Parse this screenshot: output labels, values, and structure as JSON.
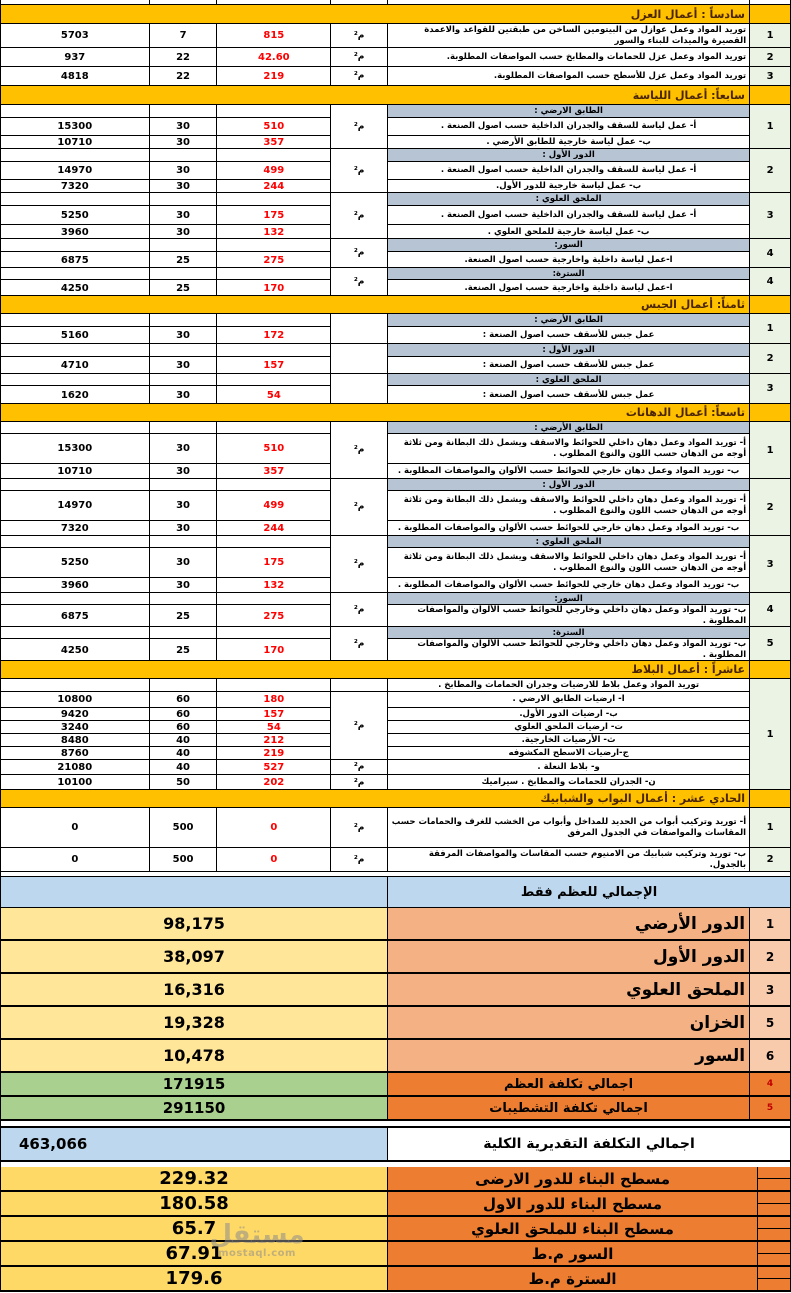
{
  "colors": {
    "section_header_bg": "#FFC000",
    "header_text": "#4a2500",
    "subrow_bg": "#B7C4D4",
    "number_col_bg": "#EAF3E4",
    "quantity_text": "#FF0000",
    "light_blue": "#BDD7EE",
    "summary_label_bg": "#F4B183",
    "summary_number_bg": "#F8CBAD",
    "summary_value_bg": "#FFE699",
    "deep_orange": "#ED7D31",
    "totals_value_bg": "#A9D08E",
    "area_value_bg": "#FFD966",
    "totals_number_text": "#C00000"
  },
  "sections": [
    {
      "kind": "items",
      "title": "سادساً : أعمال العزل",
      "rows": [
        {
          "no": "1",
          "desc": "توريد المواد وعمل عوازل من البيتومين الساخن من طبقتين للقواعد  والاعمدة القصيرة والميدات للبناء والسور",
          "unit": "م²",
          "qty": "815",
          "price": "7",
          "total": "5703"
        },
        {
          "no": "2",
          "desc": "توريد المواد وعمل عزل للحمامات والمطابخ حسب المواصفات المطلوبة.",
          "unit": "م²",
          "qty": "42.60",
          "price": "22",
          "total": "937"
        },
        {
          "no": "3",
          "desc": "توريد المواد وعمل عزل للأسطح حسب المواصفات المطلوبة.",
          "unit": "م²",
          "qty": "219",
          "price": "22",
          "total": "4818"
        }
      ]
    },
    {
      "kind": "groups",
      "title": "سابعاً: أعمال اللياسة",
      "groups": [
        {
          "no": "1",
          "sub": "الطابق الارضي :",
          "unit": "م²",
          "lines": [
            {
              "desc": "أ- عمل لياسة للسقف والجدران الداخلية حسب اصول الصنعة .",
              "qty": "510",
              "price": "30",
              "total": "15300"
            },
            {
              "desc": "ب- عمل لياسة خارجية للطابق الأرضي .",
              "qty": "357",
              "price": "30",
              "total": "10710"
            }
          ]
        },
        {
          "no": "2",
          "sub": "الدور الأول :",
          "unit": "م²",
          "lines": [
            {
              "desc": "أ- عمل لياسة للسقف والجدران الداخلية حسب اصول الصنعة .",
              "qty": "499",
              "price": "30",
              "total": "14970"
            },
            {
              "desc": "ب- عمل لياسة خارجية للدور الأول.",
              "qty": "244",
              "price": "30",
              "total": "7320"
            }
          ]
        },
        {
          "no": "3",
          "sub": "الملحق العلوي :",
          "unit": "م²",
          "lines": [
            {
              "desc": "أ- عمل لياسة للسقف والجدران الداخلية حسب اصول الصنعة .",
              "qty": "175",
              "price": "30",
              "total": "5250"
            },
            {
              "desc": "ب- عمل لياسة خارجية للملحق العلوي .",
              "qty": "132",
              "price": "30",
              "total": "3960"
            }
          ]
        },
        {
          "no": "4",
          "sub": "السور:",
          "unit": "م²",
          "lines": [
            {
              "desc": "ا-عمل لياسة داخلية واخارجية حسب اصول الصنعة.",
              "qty": "275",
              "price": "25",
              "total": "6875"
            }
          ]
        },
        {
          "no": "4",
          "sub": "السترة:",
          "unit": "م²",
          "lines": [
            {
              "desc": "ا-عمل لياسة داخلية واخارجية حسب اصول الصنعة.",
              "qty": "170",
              "price": "25",
              "total": "4250"
            }
          ]
        }
      ]
    },
    {
      "kind": "groups",
      "title": "ثامناً: أعمال الجبس",
      "groups": [
        {
          "no": "1",
          "sub": "الطابق الأرضي  :",
          "unit": "",
          "lines": [
            {
              "desc": "عمل جبس للأسقف حسب اصول الصنعة :",
              "qty": "172",
              "price": "30",
              "total": "5160"
            }
          ]
        },
        {
          "no": "2",
          "sub": "الدور الأول :",
          "unit": "",
          "lines": [
            {
              "desc": "عمل جبس للأسقف حسب اصول الصنعة :",
              "qty": "157",
              "price": "30",
              "total": "4710"
            }
          ]
        },
        {
          "no": "3",
          "sub": "الملحق العلوي :",
          "unit": "",
          "lines": [
            {
              "desc": "عمل جبس للأسقف حسب اصول الصنعة :",
              "qty": "54",
              "price": "30",
              "total": "1620"
            }
          ]
        }
      ]
    },
    {
      "kind": "groups",
      "title": "تاسعاً: أعمال الدهانات",
      "groups": [
        {
          "no": "1",
          "sub": "الطابق الأرضي :",
          "unit": "م²",
          "lines": [
            {
              "desc": "أ- توريد المواد وعمل دهان داخلي للحوائط والاسقف ويشمل ذلك البطانة ومن ثلاثة أوجه من الدهان حسب اللون والنوع المطلوب .",
              "qty": "510",
              "price": "30",
              "total": "15300"
            },
            {
              "desc": "ب- توريد المواد وعمل دهان خارجي للحوائط حسب الألوان والمواصفات المطلوبة .",
              "qty": "357",
              "price": "30",
              "total": "10710"
            }
          ]
        },
        {
          "no": "2",
          "sub": "الدور الأول :",
          "unit": "م²",
          "lines": [
            {
              "desc": "أ- توريد المواد وعمل دهان داخلي للحوائط والاسقف ويشمل ذلك البطانة ومن ثلاثة أوجه من الدهان حسب اللون والنوع المطلوب .",
              "qty": "499",
              "price": "30",
              "total": "14970"
            },
            {
              "desc": "ب- توريد المواد وعمل دهان خارجي للحوائط حسب الألوان والمواصفات المطلوبة .",
              "qty": "244",
              "price": "30",
              "total": "7320"
            }
          ]
        },
        {
          "no": "3",
          "sub": "الملحق العلوي :",
          "unit": "م²",
          "lines": [
            {
              "desc": "أ- توريد المواد وعمل دهان داخلي للحوائط والاسقف ويشمل ذلك البطانة ومن ثلاثة أوجه من الدهان حسب اللون والنوع المطلوب .",
              "qty": "175",
              "price": "30",
              "total": "5250"
            },
            {
              "desc": "ب- توريد المواد وعمل دهان خارجي للحوائط حسب الألوان والمواصفات المطلوبة .",
              "qty": "132",
              "price": "30",
              "total": "3960"
            }
          ]
        },
        {
          "no": "4",
          "sub": "السور:",
          "unit": "م²",
          "lines": [
            {
              "desc": "ب- توريد المواد وعمل دهان داخلي وخارجي للحوائط حسب الألوان والمواصفات المطلوبة .",
              "qty": "275",
              "price": "25",
              "total": "6875"
            }
          ]
        },
        {
          "no": "5",
          "sub": "السترة:",
          "unit": "م²",
          "lines": [
            {
              "desc": "ب- توريد المواد وعمل دهان داخلي وخارجي للحوائط حسب الألوان والمواصفات المطلوبة .",
              "qty": "170",
              "price": "25",
              "total": "4250"
            }
          ]
        }
      ]
    },
    {
      "kind": "tiles",
      "title": "عاشراً : أعمال البلاط",
      "no": "1",
      "intro": "توريد المواد وعمل بلاط للارضيات وجدران الحمامات والمطابخ .",
      "merged_unit": "م²",
      "lines": [
        {
          "desc": "ا- ارضيات الطابق الارضي  .",
          "qty": "180",
          "price": "60",
          "total": "10800"
        },
        {
          "desc": "ب- ارضيات الدور الأول.",
          "qty": "157",
          "price": "60",
          "total": "9420"
        },
        {
          "desc": "ت- ارضيات الملحق العلوي",
          "qty": "54",
          "price": "60",
          "total": "3240"
        },
        {
          "desc": "ث- الأرضيات الخارجية.",
          "qty": "212",
          "price": "40",
          "total": "8480"
        },
        {
          "desc": "ج-ارضيات الاسطح المكشوفه",
          "qty": "219",
          "price": "40",
          "total": "8760"
        },
        {
          "desc": "و- بلاط النعلة .",
          "unit": "م²",
          "qty": "527",
          "price": "40",
          "total": "21080"
        },
        {
          "desc": "ن- الجدران للحمامات والمطابخ . سيراميك",
          "unit": "م²",
          "qty": "202",
          "price": "50",
          "total": "10100"
        }
      ]
    },
    {
      "kind": "items",
      "title": "الحادي عشر : أعمال البواب والشبابيك",
      "rows": [
        {
          "no": "1",
          "desc": "أ- توريد وتركيب أبواب من الحديد للمداخل وأبواب من الخشب للغرف والحمامات حسب المقاسات والمواصفات في الجدول المرفق",
          "unit": "م²",
          "qty": "0",
          "price": "500",
          "total": "0"
        },
        {
          "no": "2",
          "desc": "ب- توريد وتركيب شبابيك من الامنيوم حسب المقاسات والمواصفات المرفقة بالجدول.",
          "unit": "م²",
          "qty": "0",
          "price": "500",
          "total": "0"
        }
      ]
    }
  ],
  "summary": {
    "header": "الإجمالي للعظم فقط",
    "rows": [
      {
        "no": "1",
        "label": "الدور الأرضي",
        "value": "98,175"
      },
      {
        "no": "2",
        "label": "الدور الأول",
        "value": "38,097"
      },
      {
        "no": "3",
        "label": "الملحق العلوي",
        "value": "16,316"
      },
      {
        "no": "5",
        "label": "الخزان",
        "value": "19,328"
      },
      {
        "no": "6",
        "label": "السور",
        "value": "10,478"
      }
    ],
    "totals": [
      {
        "no": "4",
        "label": "اجمالي تكلفة العظم",
        "value": "171915"
      },
      {
        "no": "5",
        "label": "اجمالي تكلفة التشطيبات",
        "value": "291150"
      }
    ],
    "grand": {
      "label": "اجمالي التكلفة التقديرية الكلية",
      "value": "463,066"
    },
    "areas": [
      {
        "label": "مسطح البناء للدور الارضى",
        "value": "229.32"
      },
      {
        "label": "مسطح البناء للدور الاول",
        "value": "180.58"
      },
      {
        "label": "مسطح البناء للملحق العلوي",
        "value": "65.7"
      },
      {
        "label": "السور م.ط",
        "value": "67.91"
      },
      {
        "label": "السترة م.ط",
        "value": "179.6"
      }
    ]
  },
  "watermark": {
    "logo": "مستقل",
    "domain": "mostaql.com"
  }
}
